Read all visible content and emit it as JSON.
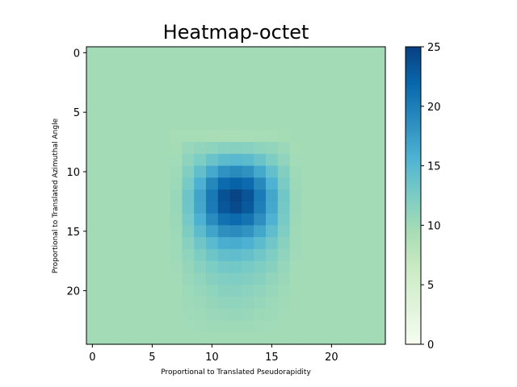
{
  "chart_data": {
    "type": "heatmap",
    "title": "Heatmap-octet",
    "xlabel": "Proportional to Translated Pseudorapidity",
    "ylabel": "Proportional to Translated Azimuthal Angle",
    "grid": false,
    "colormap": "GnBu",
    "color_stops": [
      "#f7fcf0",
      "#e0f3db",
      "#ccebc5",
      "#a8ddb5",
      "#7bccc4",
      "#4eb3d3",
      "#2b8cbe",
      "#0868ac",
      "#084081"
    ],
    "value_range": [
      0,
      25
    ],
    "rows": 25,
    "cols": 25,
    "x_ticks": [
      0,
      5,
      10,
      15,
      20
    ],
    "y_ticks": [
      0,
      5,
      10,
      15,
      20
    ],
    "colorbar_ticks": [
      0,
      5,
      10,
      15,
      20,
      25
    ],
    "values": [
      [
        9.7,
        9.7,
        9.7,
        9.7,
        9.7,
        9.7,
        9.7,
        9.7,
        9.7,
        9.7,
        9.7,
        9.7,
        9.7,
        9.7,
        9.7,
        9.7,
        9.7,
        9.7,
        9.7,
        9.7,
        9.7,
        9.7,
        9.7,
        9.7,
        9.7
      ],
      [
        9.7,
        9.7,
        9.7,
        9.7,
        9.7,
        9.7,
        9.7,
        9.7,
        9.7,
        9.7,
        9.7,
        9.7,
        9.7,
        9.7,
        9.7,
        9.7,
        9.7,
        9.7,
        9.7,
        9.7,
        9.7,
        9.7,
        9.7,
        9.7,
        9.7
      ],
      [
        9.7,
        9.7,
        9.7,
        9.7,
        9.7,
        9.7,
        9.7,
        9.7,
        9.7,
        9.7,
        9.7,
        9.7,
        9.7,
        9.7,
        9.7,
        9.7,
        9.7,
        9.7,
        9.7,
        9.7,
        9.7,
        9.7,
        9.7,
        9.7,
        9.7
      ],
      [
        9.7,
        9.7,
        9.7,
        9.7,
        9.7,
        9.7,
        9.7,
        9.7,
        9.7,
        9.7,
        9.7,
        9.7,
        9.7,
        9.7,
        9.7,
        9.7,
        9.7,
        9.7,
        9.7,
        9.7,
        9.7,
        9.7,
        9.7,
        9.7,
        9.7
      ],
      [
        9.7,
        9.7,
        9.7,
        9.7,
        9.7,
        9.7,
        9.7,
        9.7,
        9.7,
        9.7,
        9.7,
        9.7,
        9.7,
        9.7,
        9.7,
        9.7,
        9.7,
        9.7,
        9.7,
        9.7,
        9.7,
        9.7,
        9.7,
        9.7,
        9.7
      ],
      [
        9.7,
        9.7,
        9.7,
        9.7,
        9.7,
        9.7,
        9.7,
        9.7,
        9.7,
        9.7,
        9.7,
        9.7,
        9.7,
        9.7,
        9.7,
        9.7,
        9.7,
        9.7,
        9.7,
        9.7,
        9.7,
        9.7,
        9.7,
        9.7,
        9.7
      ],
      [
        9.7,
        9.7,
        9.7,
        9.7,
        9.7,
        9.7,
        9.7,
        9.7,
        9.7,
        9.7,
        9.7,
        9.7,
        9.7,
        9.7,
        9.7,
        9.7,
        9.7,
        9.7,
        9.7,
        9.7,
        9.7,
        9.7,
        9.7,
        9.7,
        9.7
      ],
      [
        9.7,
        9.7,
        9.7,
        9.7,
        9.7,
        9.7,
        9.7,
        9.5,
        9.5,
        9.5,
        9.4,
        9.3,
        9.3,
        9.4,
        9.5,
        9.5,
        9.6,
        9.7,
        9.7,
        9.7,
        9.7,
        9.7,
        9.7,
        9.7,
        9.7
      ],
      [
        9.7,
        9.7,
        9.7,
        9.7,
        9.7,
        9.7,
        9.7,
        9.6,
        10.4,
        10.8,
        11.2,
        11.6,
        11.7,
        11.6,
        11.2,
        10.8,
        10.3,
        9.6,
        9.7,
        9.7,
        9.7,
        9.7,
        9.7,
        9.7,
        9.7
      ],
      [
        9.7,
        9.7,
        9.7,
        9.7,
        9.7,
        9.7,
        9.7,
        9.8,
        11.2,
        12.4,
        13.6,
        14.6,
        14.9,
        14.6,
        13.6,
        12.3,
        11.0,
        9.8,
        9.7,
        9.7,
        9.7,
        9.7,
        9.7,
        9.7,
        9.7
      ],
      [
        9.7,
        9.7,
        9.7,
        9.7,
        9.7,
        9.7,
        9.7,
        10.0,
        12.0,
        14.2,
        16.4,
        18.3,
        18.9,
        18.3,
        16.4,
        14.1,
        12.0,
        10.0,
        9.7,
        9.7,
        9.7,
        9.7,
        9.7,
        9.7,
        9.7
      ],
      [
        9.7,
        9.7,
        9.7,
        9.7,
        9.7,
        9.7,
        9.7,
        10.2,
        12.8,
        15.8,
        19.2,
        21.6,
        22.3,
        21.6,
        19.0,
        15.6,
        12.6,
        10.2,
        9.7,
        9.7,
        9.7,
        9.7,
        9.7,
        9.7,
        9.7
      ],
      [
        9.7,
        9.7,
        9.7,
        9.7,
        9.7,
        9.7,
        9.7,
        10.4,
        13.4,
        16.8,
        20.4,
        23.6,
        24.6,
        23.4,
        20.2,
        16.6,
        13.2,
        10.3,
        9.7,
        9.7,
        9.7,
        9.7,
        9.7,
        9.7,
        9.7
      ],
      [
        9.7,
        9.7,
        9.7,
        9.7,
        9.7,
        9.7,
        9.7,
        10.4,
        13.3,
        16.6,
        20.2,
        23.2,
        24.2,
        23.0,
        19.8,
        16.4,
        13.0,
        10.3,
        9.7,
        9.7,
        9.7,
        9.7,
        9.7,
        9.7,
        9.7
      ],
      [
        9.7,
        9.7,
        9.7,
        9.7,
        9.7,
        9.7,
        9.7,
        10.3,
        12.9,
        15.8,
        18.8,
        21.0,
        21.6,
        20.8,
        18.6,
        15.6,
        12.8,
        10.2,
        9.7,
        9.7,
        9.7,
        9.7,
        9.7,
        9.7,
        9.7
      ],
      [
        9.7,
        9.7,
        9.7,
        9.7,
        9.7,
        9.7,
        9.7,
        10.2,
        12.3,
        14.6,
        16.8,
        18.4,
        18.8,
        18.2,
        16.6,
        14.4,
        12.2,
        10.1,
        9.7,
        9.7,
        9.7,
        9.7,
        9.7,
        9.7,
        9.7
      ],
      [
        9.7,
        9.7,
        9.7,
        9.7,
        9.7,
        9.7,
        9.7,
        10.1,
        11.6,
        13.3,
        14.8,
        16.0,
        16.2,
        15.8,
        14.6,
        13.2,
        11.5,
        10.0,
        9.7,
        9.7,
        9.7,
        9.7,
        9.7,
        9.7,
        9.7
      ],
      [
        9.7,
        9.7,
        9.7,
        9.7,
        9.7,
        9.7,
        9.7,
        10.0,
        11.1,
        12.3,
        13.4,
        14.2,
        14.4,
        14.0,
        13.2,
        12.2,
        11.0,
        9.9,
        9.7,
        9.7,
        9.7,
        9.7,
        9.7,
        9.7,
        9.7
      ],
      [
        9.7,
        9.7,
        9.7,
        9.7,
        9.7,
        9.7,
        9.7,
        9.9,
        10.7,
        11.6,
        12.4,
        13.0,
        13.1,
        12.8,
        12.2,
        11.5,
        10.6,
        9.8,
        9.7,
        9.7,
        9.7,
        9.7,
        9.7,
        9.7,
        9.7
      ],
      [
        9.7,
        9.7,
        9.7,
        9.7,
        9.7,
        9.7,
        9.7,
        9.8,
        10.4,
        11.0,
        11.7,
        12.1,
        12.2,
        12.0,
        11.5,
        10.9,
        10.3,
        9.7,
        9.7,
        9.7,
        9.7,
        9.7,
        9.7,
        9.7,
        9.7
      ],
      [
        9.7,
        9.7,
        9.7,
        9.7,
        9.7,
        9.7,
        9.7,
        9.7,
        10.2,
        10.6,
        11.1,
        11.5,
        11.6,
        11.4,
        11.0,
        10.5,
        10.1,
        9.7,
        9.7,
        9.7,
        9.7,
        9.7,
        9.7,
        9.7,
        9.7
      ],
      [
        9.7,
        9.7,
        9.7,
        9.7,
        9.7,
        9.7,
        9.7,
        9.7,
        10.0,
        10.3,
        10.7,
        11.0,
        11.1,
        10.9,
        10.6,
        10.2,
        9.9,
        9.7,
        9.7,
        9.7,
        9.7,
        9.7,
        9.7,
        9.7,
        9.7
      ],
      [
        9.7,
        9.7,
        9.7,
        9.7,
        9.7,
        9.7,
        9.7,
        9.7,
        9.9,
        10.1,
        10.3,
        10.5,
        10.6,
        10.4,
        10.2,
        10.0,
        9.8,
        9.7,
        9.7,
        9.7,
        9.7,
        9.7,
        9.7,
        9.7,
        9.7
      ],
      [
        9.7,
        9.7,
        9.7,
        9.7,
        9.7,
        9.7,
        9.7,
        9.7,
        9.8,
        9.9,
        10.0,
        10.1,
        10.1,
        10.0,
        9.9,
        9.8,
        9.7,
        9.7,
        9.7,
        9.7,
        9.7,
        9.7,
        9.7,
        9.7,
        9.7
      ],
      [
        9.7,
        9.7,
        9.7,
        9.7,
        9.7,
        9.7,
        9.7,
        9.7,
        9.7,
        9.7,
        9.7,
        9.7,
        9.7,
        9.7,
        9.7,
        9.7,
        9.7,
        9.7,
        9.7,
        9.7,
        9.7,
        9.7,
        9.7,
        9.7,
        9.7
      ]
    ]
  }
}
